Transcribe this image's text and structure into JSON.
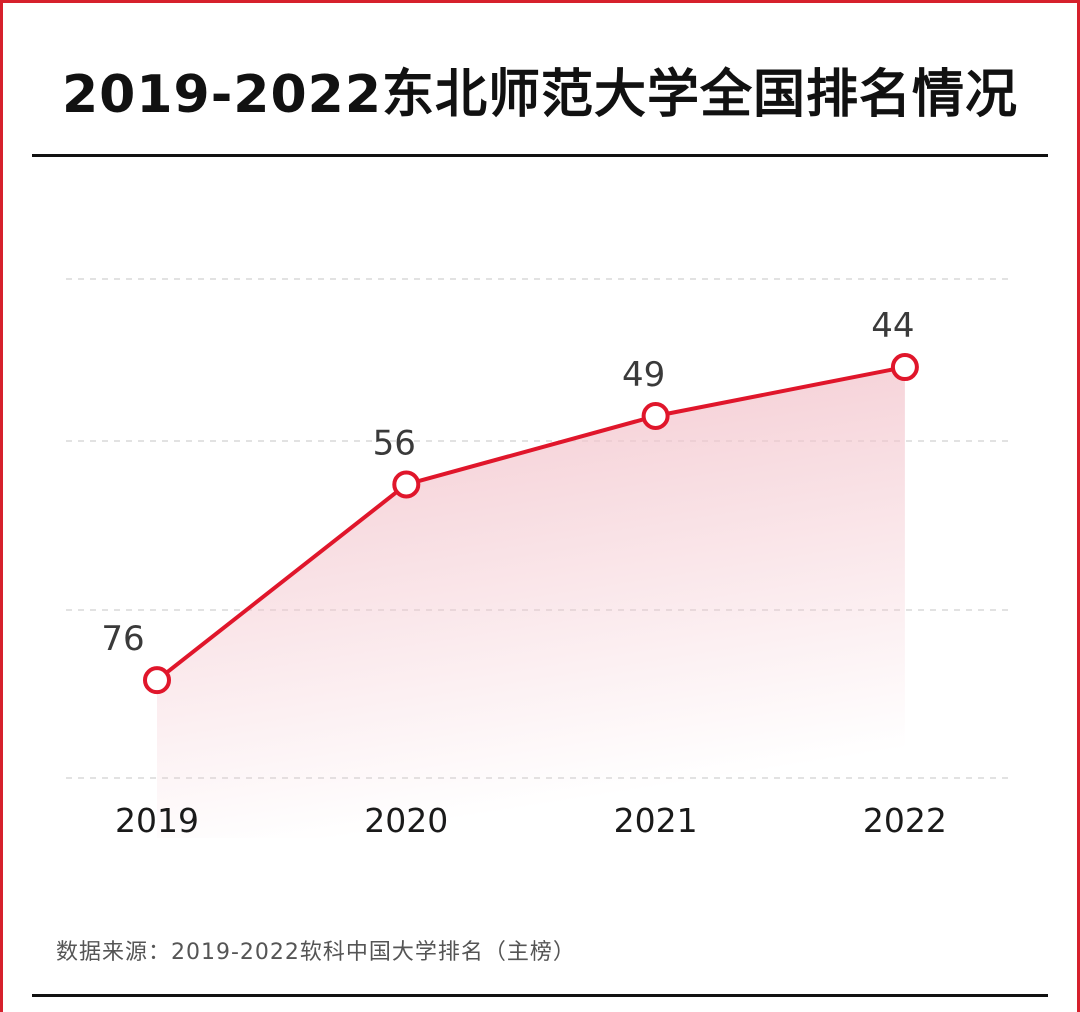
{
  "chart_data": {
    "type": "line",
    "title": "2019-2022东北师范大学全国排名情况",
    "categories": [
      "2019",
      "2020",
      "2021",
      "2022"
    ],
    "series": [
      {
        "values": [
          76,
          56,
          49,
          44
        ]
      }
    ],
    "ylim": [
      86,
      35
    ],
    "y_reversed": true,
    "grid": true,
    "legend": "none",
    "area_fill": true,
    "colors": {
      "line": "#e0162b",
      "fill": "#f3c4cc",
      "grid": "#d9d9d9",
      "frame": "#d6202c"
    }
  },
  "source": "数据来源：2019-2022软科中国大学排名（主榜）"
}
